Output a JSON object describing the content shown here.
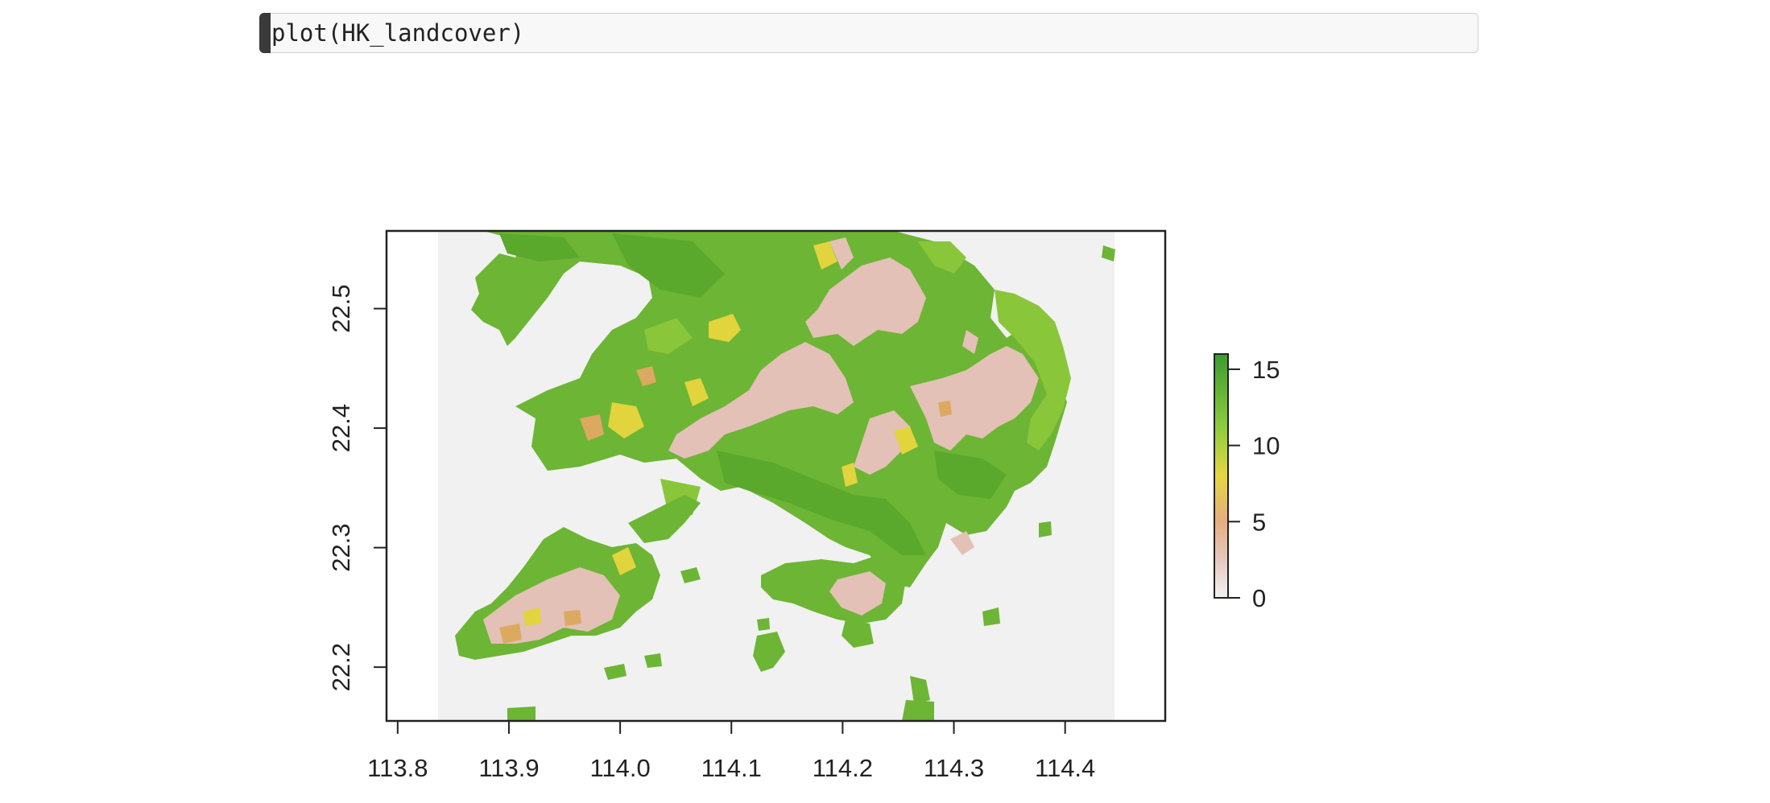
{
  "code_cell": {
    "code": "plot(HK_landcover)"
  },
  "chart_data": {
    "type": "heatmap",
    "title": "",
    "xlabel": "",
    "ylabel": "",
    "xlim": [
      113.79,
      114.49
    ],
    "ylim": [
      22.155,
      22.565
    ],
    "data_extent_x": [
      113.835,
      114.445
    ],
    "x_ticks": [
      "113.8",
      "113.9",
      "114.0",
      "114.1",
      "114.2",
      "114.3",
      "114.4"
    ],
    "y_ticks": [
      "22.2",
      "22.3",
      "22.4",
      "22.5"
    ],
    "legend": {
      "placement": "right",
      "min": 0,
      "max": 16,
      "ticks": [
        "0",
        "5",
        "10",
        "15"
      ],
      "colors": [
        "#f2f2f2",
        "#e6c9c0",
        "#e7ad7b",
        "#e6d640",
        "#8dcc3e",
        "#3c9b2e"
      ]
    },
    "colors": {
      "background": "#f1f1f1",
      "forest": "#6db534",
      "dense_forest": "#5aa82c",
      "grassland": "#8ac63a",
      "shrub": "#e2d43d",
      "cropland": "#dca960",
      "urban": "#e3c1b6"
    }
  }
}
